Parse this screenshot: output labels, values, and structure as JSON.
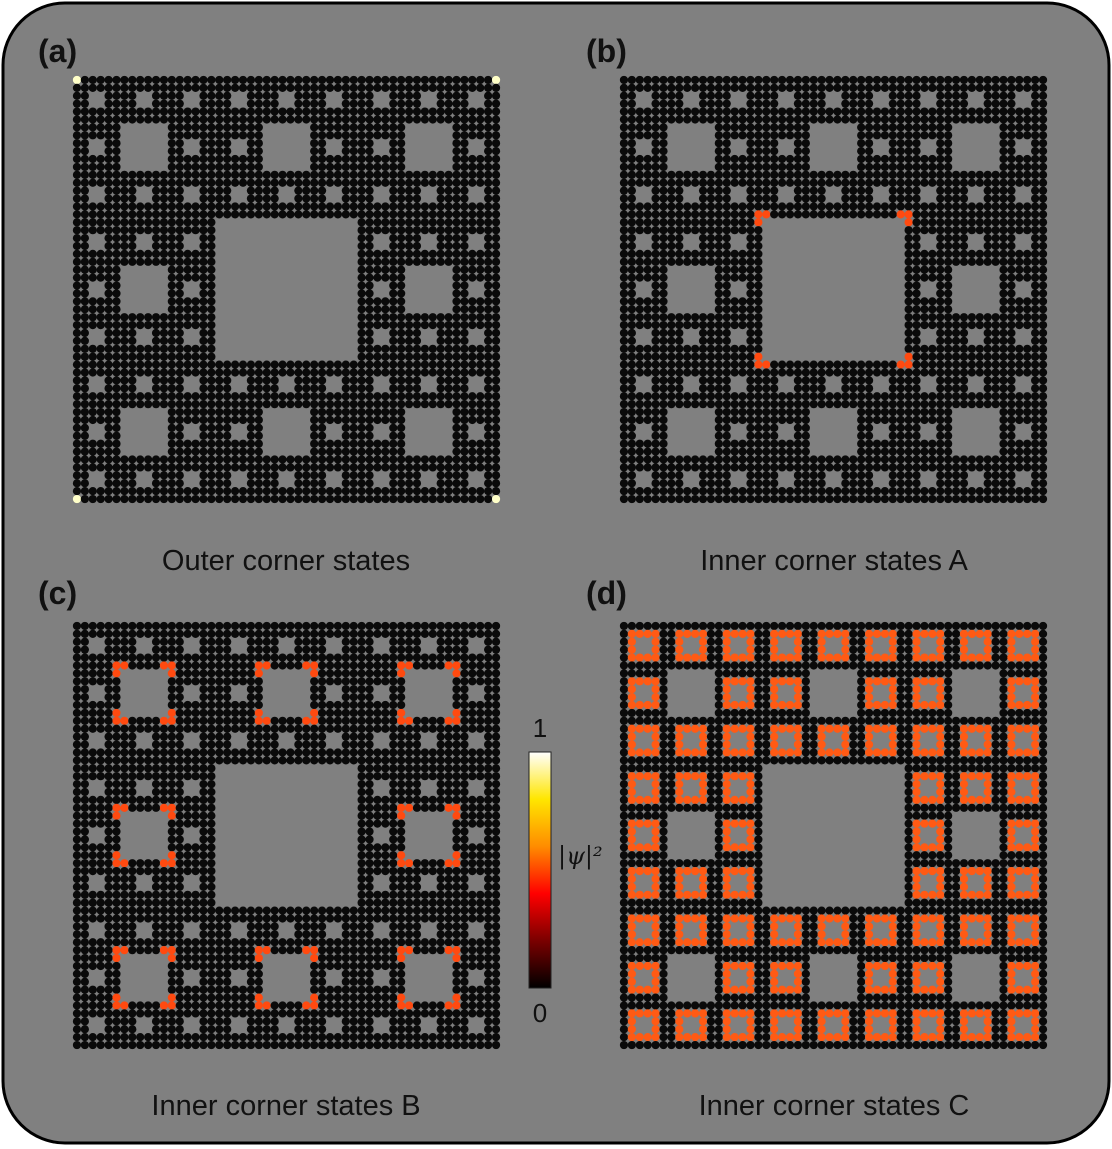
{
  "panels": [
    {
      "id": "a",
      "letter": "(a)",
      "caption": "Outer corner states",
      "highlight": "outer",
      "highlight_color": "#ffffc8"
    },
    {
      "id": "b",
      "letter": "(b)",
      "caption": "Inner corner states A",
      "highlight": "inner-A",
      "highlight_color": "#ff4a10"
    },
    {
      "id": "c",
      "letter": "(c)",
      "caption": "Inner corner states B",
      "highlight": "inner-B",
      "highlight_color": "#ff4a10"
    },
    {
      "id": "d",
      "letter": "(d)",
      "caption": "Inner corner states C",
      "highlight": "inner-C",
      "highlight_color": "#ff5a14"
    }
  ],
  "colorbar": {
    "max_label": "1",
    "min_label": "0",
    "quantity_label": "|ψ|²",
    "colormap": [
      "#000000",
      "#7a0000",
      "#ff0000",
      "#ff8c00",
      "#ffe600",
      "#ffffff"
    ]
  },
  "colors": {
    "background": "#808080",
    "border": "#000000",
    "site": "#0a0a0a",
    "hole": "#808080"
  }
}
